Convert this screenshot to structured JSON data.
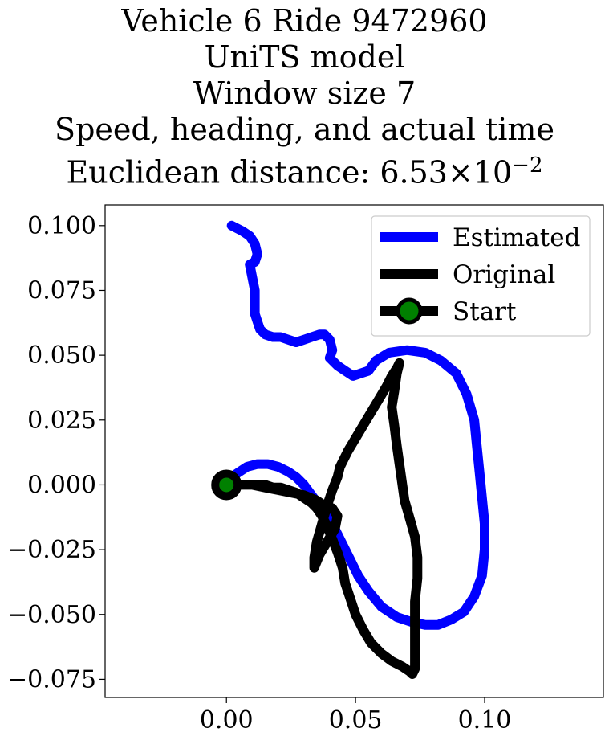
{
  "chart_data": {
    "type": "line",
    "title_lines": [
      "Vehicle 6 Ride 9472960",
      "UniTS model",
      "Window size 7",
      "Speed, heading, and actual time"
    ],
    "title_distance_prefix": "Euclidean distance: ",
    "title_distance_mantissa": "6.53",
    "title_distance_times": "×",
    "title_distance_base": "10",
    "title_distance_exponent": "−2",
    "xlim": [
      -0.047,
      0.146
    ],
    "ylim": [
      -0.082,
      0.108
    ],
    "xticks": [
      0.0,
      0.05,
      0.1
    ],
    "xtick_labels": [
      "0.00",
      "0.05",
      "0.10"
    ],
    "yticks": [
      0.1,
      0.075,
      0.05,
      0.025,
      0.0,
      -0.025,
      -0.05,
      -0.075
    ],
    "ytick_labels": [
      "0.100",
      "0.075",
      "0.050",
      "0.025",
      "0.000",
      "−0.025",
      "−0.050",
      "−0.075"
    ],
    "grid": false,
    "legend_position": "top-right",
    "series": [
      {
        "name": "Estimated",
        "color": "#0000ff",
        "x": [
          0.002,
          0.006,
          0.009,
          0.011,
          0.012,
          0.011,
          0.009,
          0.01,
          0.011,
          0.011,
          0.011,
          0.012,
          0.013,
          0.015,
          0.018,
          0.021,
          0.024,
          0.027,
          0.03,
          0.033,
          0.036,
          0.038,
          0.04,
          0.041,
          0.04,
          0.043,
          0.046,
          0.049,
          0.052,
          0.055,
          0.058,
          0.063,
          0.07,
          0.077,
          0.083,
          0.089,
          0.093,
          0.096,
          0.097,
          0.098,
          0.099,
          0.1,
          0.1,
          0.099,
          0.096,
          0.092,
          0.087,
          0.082,
          0.077,
          0.072,
          0.066,
          0.06,
          0.055,
          0.051,
          0.048,
          0.045,
          0.042,
          0.039,
          0.036,
          0.033,
          0.03,
          0.027,
          0.024,
          0.02,
          0.016,
          0.012,
          0.008,
          0.005,
          0.002,
          0.0
        ],
        "y": [
          0.1,
          0.098,
          0.096,
          0.093,
          0.089,
          0.086,
          0.085,
          0.08,
          0.075,
          0.07,
          0.066,
          0.063,
          0.06,
          0.058,
          0.057,
          0.057,
          0.056,
          0.055,
          0.056,
          0.057,
          0.058,
          0.058,
          0.056,
          0.052,
          0.049,
          0.046,
          0.044,
          0.042,
          0.043,
          0.044,
          0.048,
          0.051,
          0.052,
          0.051,
          0.048,
          0.043,
          0.035,
          0.025,
          0.015,
          0.005,
          -0.005,
          -0.015,
          -0.025,
          -0.035,
          -0.043,
          -0.049,
          -0.052,
          -0.054,
          -0.054,
          -0.053,
          -0.051,
          -0.047,
          -0.041,
          -0.035,
          -0.029,
          -0.023,
          -0.017,
          -0.012,
          -0.008,
          -0.004,
          -0.0,
          0.003,
          0.005,
          0.007,
          0.008,
          0.008,
          0.007,
          0.005,
          0.003,
          0.0
        ]
      },
      {
        "name": "Original",
        "color": "#000000",
        "x": [
          0.0,
          0.005,
          0.01,
          0.015,
          0.02,
          0.025,
          0.03,
          0.035,
          0.038,
          0.041,
          0.043,
          0.042,
          0.039,
          0.036,
          0.034,
          0.034,
          0.035,
          0.037,
          0.039,
          0.041,
          0.043,
          0.044,
          0.047,
          0.05,
          0.053,
          0.056,
          0.059,
          0.062,
          0.064,
          0.066,
          0.067,
          0.066,
          0.065,
          0.064,
          0.065,
          0.066,
          0.067,
          0.068,
          0.069,
          0.071,
          0.073,
          0.074,
          0.074,
          0.073,
          0.073,
          0.073,
          0.073,
          0.072,
          0.071,
          0.068,
          0.064,
          0.06,
          0.056,
          0.053,
          0.05,
          0.048,
          0.046,
          0.045,
          0.043,
          0.041,
          0.039,
          0.037,
          0.035,
          0.033,
          0.03,
          0.027,
          0.024,
          0.021,
          0.018,
          0.015,
          0.012,
          0.009,
          0.006,
          0.003,
          0.0
        ],
        "y": [
          0.0,
          0.0,
          0.0,
          -0.001,
          -0.002,
          -0.003,
          -0.004,
          -0.006,
          -0.008,
          -0.009,
          -0.012,
          -0.017,
          -0.022,
          -0.027,
          -0.032,
          -0.028,
          -0.022,
          -0.015,
          -0.008,
          -0.002,
          0.003,
          0.007,
          0.013,
          0.018,
          0.023,
          0.028,
          0.033,
          0.038,
          0.042,
          0.045,
          0.047,
          0.043,
          0.036,
          0.03,
          0.023,
          0.015,
          0.008,
          0.001,
          -0.006,
          -0.013,
          -0.02,
          -0.028,
          -0.036,
          -0.045,
          -0.055,
          -0.065,
          -0.071,
          -0.073,
          -0.072,
          -0.07,
          -0.068,
          -0.065,
          -0.061,
          -0.056,
          -0.05,
          -0.044,
          -0.038,
          -0.032,
          -0.026,
          -0.021,
          -0.016,
          -0.012,
          -0.009,
          -0.007,
          -0.005,
          -0.003,
          -0.002,
          -0.001,
          -0.001,
          -0.0,
          -0.0,
          0.0,
          0.0,
          0.0,
          0.0
        ]
      }
    ],
    "start_marker": {
      "name": "Start",
      "x": 0.0,
      "y": 0.0,
      "fill": "#008000",
      "edge": "#000000"
    }
  }
}
